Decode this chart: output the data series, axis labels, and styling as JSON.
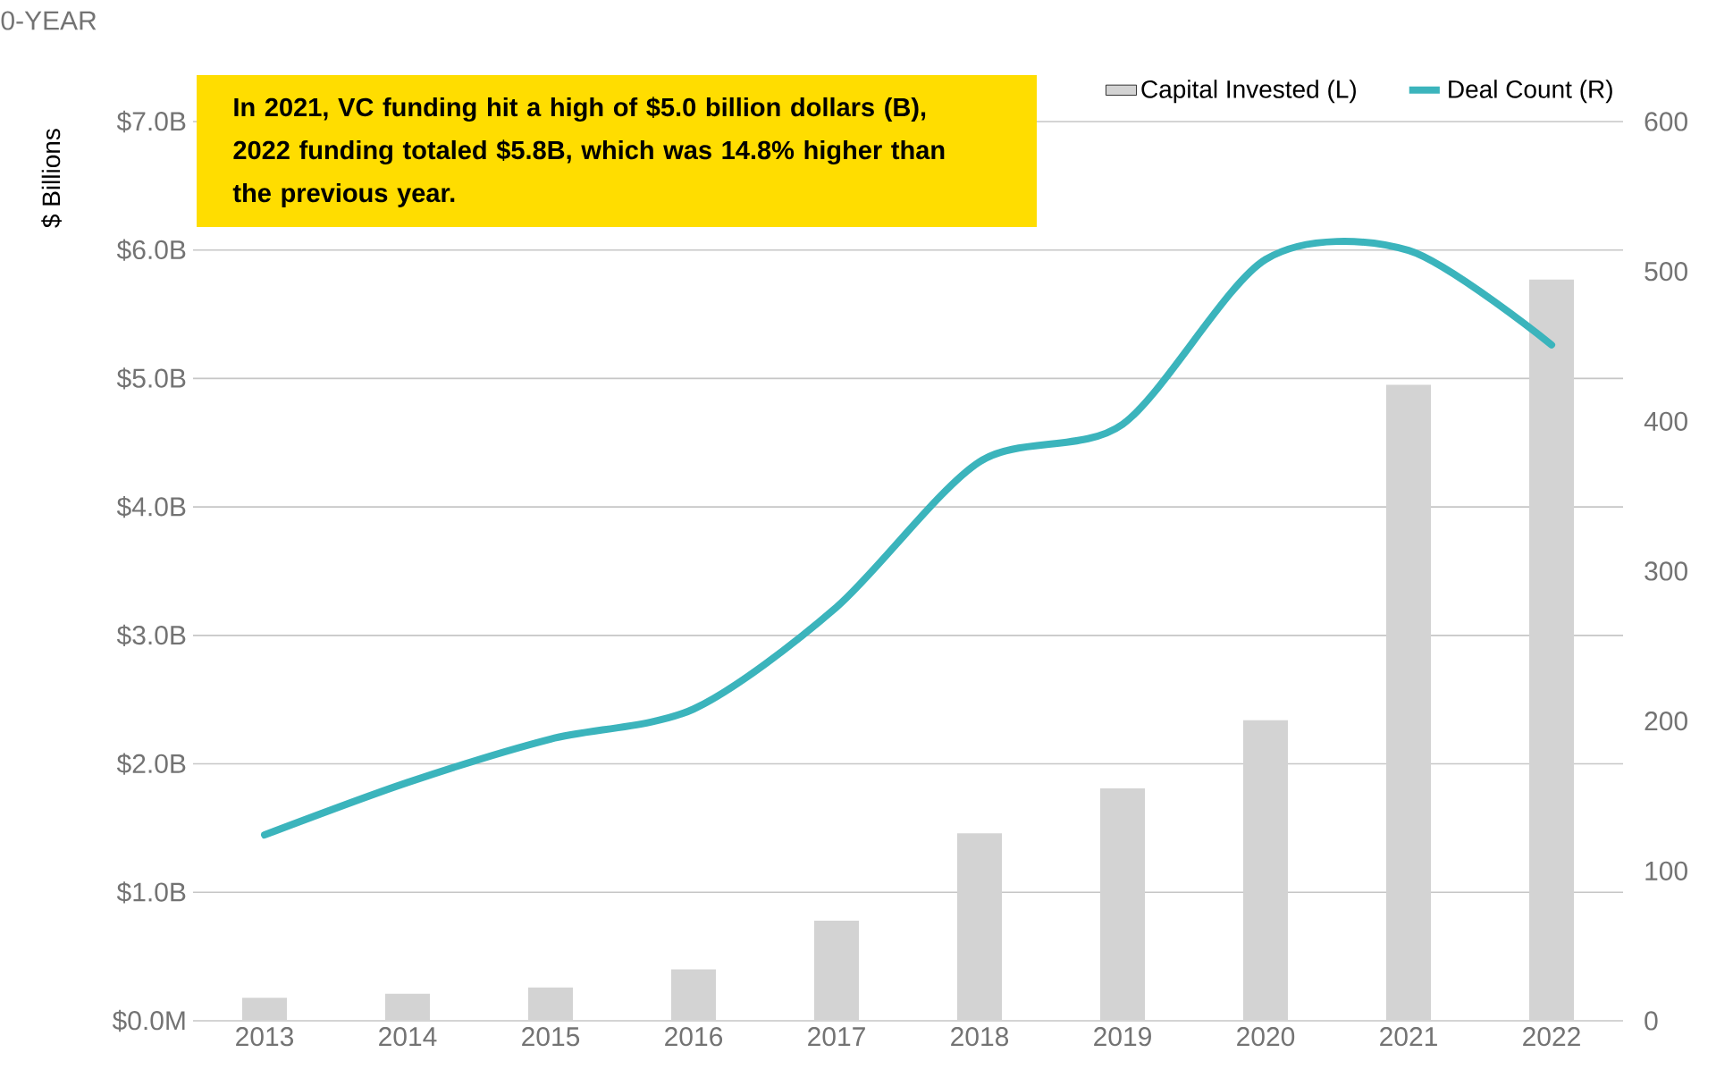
{
  "chart_data": {
    "type": "bar",
    "title": "0-YEAR",
    "ylabel": "$ Billions",
    "annotations": [
      "**In 2021, VC funding hit a high of $5.0 billion dollars (B), 2022 funding totaled $5.8B, which was 14.8% higher than the previous year.**"
    ],
    "categories": [
      "2013",
      "2014",
      "2015",
      "2016",
      "2017",
      "2018",
      "2019",
      "2020",
      "2021",
      "2022"
    ],
    "series": [
      {
        "name": "Capital Invested (L)",
        "color": "#d3d3d3",
        "values": [
          0.18,
          0.21,
          0.26,
          0.4,
          0.78,
          1.46,
          1.81,
          2.34,
          4.95,
          5.77
        ]
      },
      {
        "name": "Deal Count (R)",
        "type": "line",
        "axis": "y2",
        "color": "#3bb4bc",
        "values": [
          124,
          159,
          188,
          208,
          276,
          373,
          398,
          508,
          514,
          451
        ]
      }
    ],
    "ylim": [
      0,
      7
    ],
    "yticks": [
      {
        "value": 0,
        "label": "$0.0M"
      },
      {
        "value": 1,
        "label": "$1.0B"
      },
      {
        "value": 2,
        "label": "$2.0B"
      },
      {
        "value": 3,
        "label": "$3.0B"
      },
      {
        "value": 4,
        "label": "$4.0B"
      },
      {
        "value": 5,
        "label": "$5.0B"
      },
      {
        "value": 6,
        "label": "$6.0B"
      },
      {
        "value": 7,
        "label": "$7.0B"
      }
    ],
    "y2lim": [
      0,
      600
    ],
    "y2ticks": [
      0,
      100,
      200,
      300,
      400,
      500,
      600
    ],
    "grid": "y",
    "legend": "top right",
    "line_style": "solid",
    "marker": "none"
  }
}
